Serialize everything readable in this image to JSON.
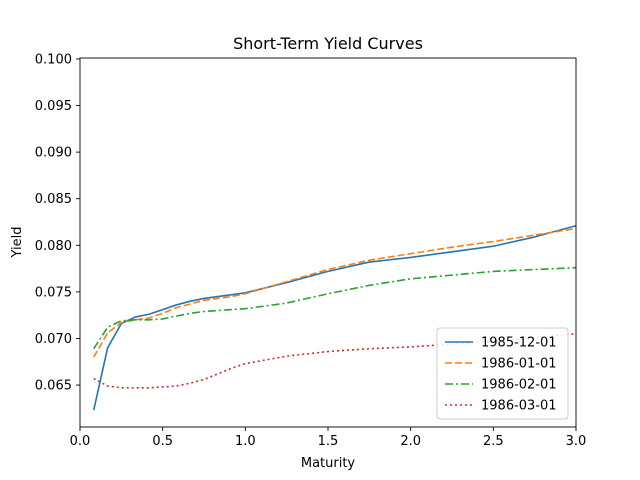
{
  "chart_data": {
    "type": "line",
    "title": "Short-Term Yield Curves",
    "xlabel": "Maturity",
    "ylabel": "Yield",
    "xlim": [
      0.0,
      3.0
    ],
    "ylim": [
      0.0605,
      0.1001
    ],
    "xticks": [
      0.0,
      0.5,
      1.0,
      1.5,
      2.0,
      2.5,
      3.0
    ],
    "xtick_labels": [
      "0.0",
      "0.5",
      "1.0",
      "1.5",
      "2.0",
      "2.5",
      "3.0"
    ],
    "yticks": [
      0.065,
      0.07,
      0.075,
      0.08,
      0.085,
      0.09,
      0.095,
      0.1
    ],
    "ytick_labels": [
      "0.065",
      "0.070",
      "0.075",
      "0.080",
      "0.085",
      "0.090",
      "0.095",
      "0.100"
    ],
    "grid": false,
    "legend_position": "lower-right",
    "series": [
      {
        "name": "1985-12-01",
        "color": "#1f77b4",
        "dash": "solid",
        "x": [
          0.083,
          0.167,
          0.25,
          0.333,
          0.417,
          0.5,
          0.583,
          0.667,
          0.75,
          0.833,
          0.917,
          1.0,
          1.25,
          1.5,
          1.75,
          2.0,
          2.25,
          2.5,
          2.75,
          3.0
        ],
        "y": [
          0.0623,
          0.069,
          0.0716,
          0.0723,
          0.0726,
          0.0731,
          0.0736,
          0.074,
          0.0743,
          0.0745,
          0.0747,
          0.0749,
          0.076,
          0.0772,
          0.0782,
          0.0787,
          0.0793,
          0.0799,
          0.0809,
          0.0821
        ]
      },
      {
        "name": "1986-01-01",
        "color": "#ff7f0e",
        "dash": "dashed",
        "x": [
          0.083,
          0.167,
          0.25,
          0.333,
          0.417,
          0.5,
          0.583,
          0.667,
          0.75,
          0.833,
          0.917,
          1.0,
          1.25,
          1.5,
          1.75,
          2.0,
          2.25,
          2.5,
          2.75,
          3.0
        ],
        "y": [
          0.068,
          0.0706,
          0.0717,
          0.072,
          0.0722,
          0.0727,
          0.0733,
          0.0737,
          0.0741,
          0.0743,
          0.0745,
          0.0748,
          0.0761,
          0.0774,
          0.0784,
          0.0791,
          0.0798,
          0.0804,
          0.0811,
          0.0818
        ]
      },
      {
        "name": "1986-02-01",
        "color": "#2ca02c",
        "dash": "dashdot",
        "x": [
          0.083,
          0.167,
          0.25,
          0.333,
          0.417,
          0.5,
          0.583,
          0.667,
          0.75,
          0.833,
          0.917,
          1.0,
          1.25,
          1.5,
          1.75,
          2.0,
          2.25,
          2.5,
          2.75,
          3.0
        ],
        "y": [
          0.0689,
          0.0712,
          0.0719,
          0.072,
          0.072,
          0.0721,
          0.0724,
          0.0727,
          0.0729,
          0.073,
          0.0731,
          0.0732,
          0.0738,
          0.0748,
          0.0757,
          0.0764,
          0.0768,
          0.0772,
          0.0774,
          0.0776
        ]
      },
      {
        "name": "1986-03-01",
        "color": "#d62728",
        "dash": "dotted",
        "x": [
          0.083,
          0.167,
          0.25,
          0.333,
          0.417,
          0.5,
          0.583,
          0.667,
          0.75,
          0.833,
          0.917,
          1.0,
          1.25,
          1.5,
          1.75,
          2.0,
          2.25,
          2.5,
          2.75,
          3.0
        ],
        "y": [
          0.0657,
          0.0649,
          0.0647,
          0.0647,
          0.0647,
          0.0648,
          0.0649,
          0.0652,
          0.0656,
          0.0662,
          0.0668,
          0.0673,
          0.0681,
          0.0686,
          0.0689,
          0.0691,
          0.0694,
          0.0697,
          0.0701,
          0.0705
        ]
      }
    ]
  }
}
